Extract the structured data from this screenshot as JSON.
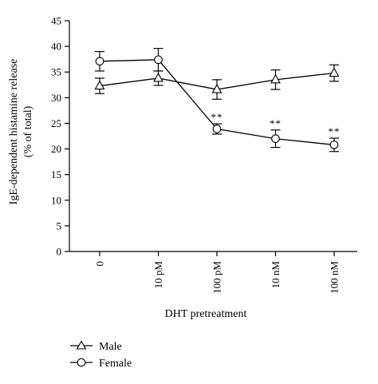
{
  "chart_data": {
    "type": "line",
    "categories": [
      "0",
      "10 pM",
      "100 pM",
      "10 nM",
      "100 nM"
    ],
    "ylabel_line1": "IgE-dependent histamine release",
    "ylabel_line2": "(% of total)",
    "xlabel": "DHT pretreatment",
    "ylim": [
      0,
      45
    ],
    "yticks": [
      0,
      5,
      10,
      15,
      20,
      25,
      30,
      35,
      40,
      45
    ],
    "grid": false,
    "legend_position": "bottom-left",
    "series": [
      {
        "name": "Male",
        "marker": "triangle",
        "values": [
          32.3,
          33.8,
          31.6,
          33.5,
          34.8
        ],
        "errors": [
          1.5,
          1.4,
          1.9,
          1.9,
          1.6
        ]
      },
      {
        "name": "Female",
        "marker": "circle",
        "values": [
          37.1,
          37.4,
          23.9,
          22.0,
          20.8
        ],
        "errors": [
          1.9,
          2.2,
          1.0,
          1.7,
          1.3
        ]
      }
    ],
    "annotations": [
      {
        "category": "100 pM",
        "text": "**",
        "series": "Female"
      },
      {
        "category": "10 nM",
        "text": "**",
        "series": "Female"
      },
      {
        "category": "100 nM",
        "text": "**",
        "series": "Female"
      }
    ]
  }
}
